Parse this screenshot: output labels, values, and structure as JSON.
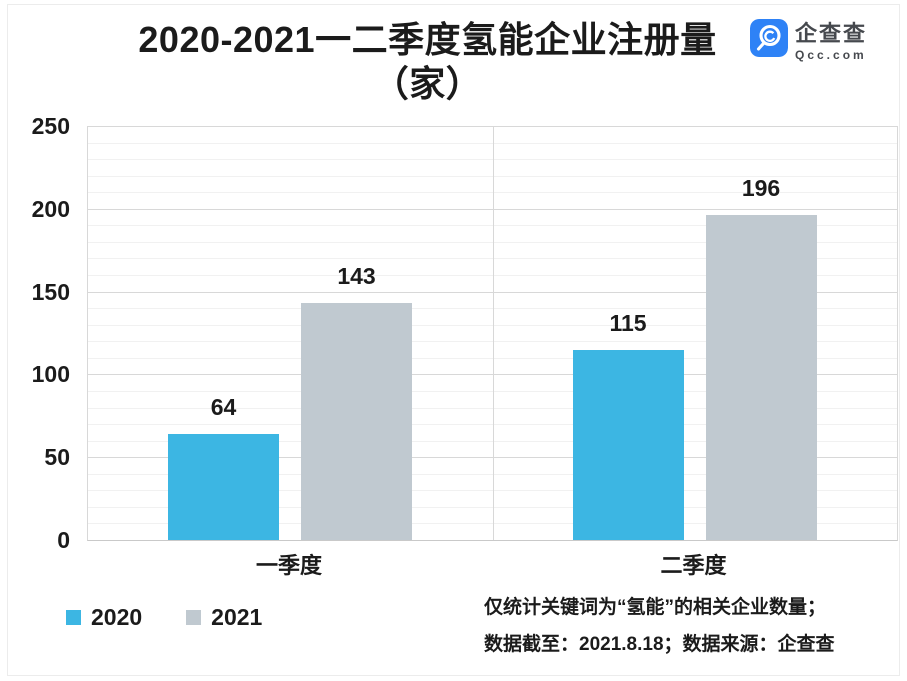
{
  "title": {
    "line1": "2020-2021一二季度氢能企业注册量",
    "line2": "（家）"
  },
  "logo": {
    "name": "企查查",
    "domain": "Qcc.com"
  },
  "colors": {
    "logo_blue": "#2E82F6",
    "series_2020": "#3CB6E3",
    "series_2021": "#C0C9D0",
    "text": "#1b1b1b"
  },
  "chart_data": {
    "type": "bar",
    "title": "2020-2021一二季度氢能企业注册量（家）",
    "categories": [
      "一季度",
      "二季度"
    ],
    "series": [
      {
        "name": "2020",
        "color": "#3CB6E3",
        "values": [
          64,
          115
        ]
      },
      {
        "name": "2021",
        "color": "#C0C9D0",
        "values": [
          143,
          196
        ]
      }
    ],
    "xlabel": "",
    "ylabel": "",
    "ylim": [
      0,
      250
    ],
    "yticks": [
      0,
      50,
      100,
      150,
      200,
      250
    ],
    "minor_grid_step": 10,
    "major_grid_step": 50,
    "grid": true,
    "data_labels": true,
    "legend_position": "bottom-left"
  },
  "footer": {
    "line1": "仅统计关键词为“氢能”的相关企业数量；",
    "line2": "数据截至：2021.8.18；数据来源：企查查"
  }
}
